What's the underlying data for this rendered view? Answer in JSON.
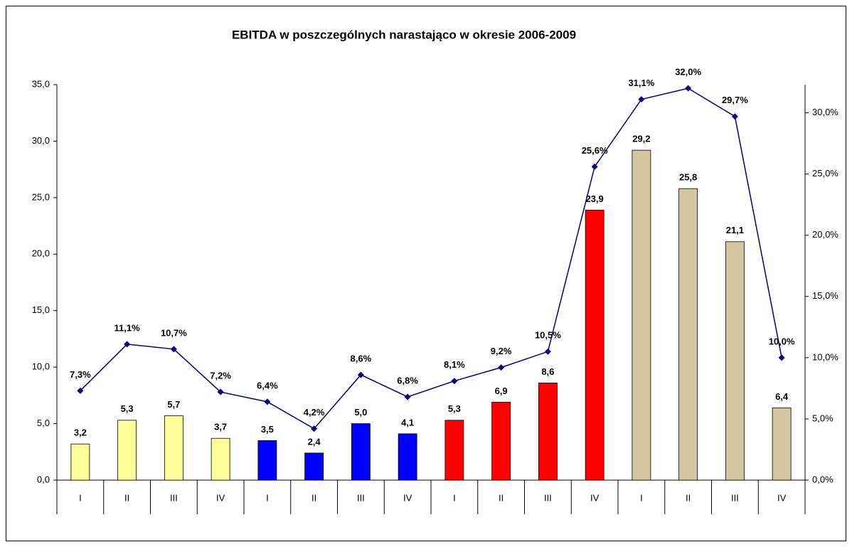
{
  "chart_data": {
    "type": "bar_line",
    "title": "EBITDA w poszczególnych narastająco w okresie 2006-2009",
    "categories": [
      "I",
      "II",
      "III",
      "IV",
      "I",
      "II",
      "III",
      "IV",
      "I",
      "II",
      "III",
      "IV",
      "I",
      "II",
      "III",
      "IV"
    ],
    "series": [
      {
        "type": "bar",
        "colors": [
          "#ffff99",
          "#ffff99",
          "#ffff99",
          "#ffff99",
          "#0000ff",
          "#0000ff",
          "#0000ff",
          "#0000ff",
          "#ff0000",
          "#ff0000",
          "#ff0000",
          "#ff0000",
          "#d3c6a0",
          "#d3c6a0",
          "#d3c6a0",
          "#d3c6a0"
        ],
        "values": [
          3.2,
          5.3,
          5.7,
          3.7,
          3.5,
          2.4,
          5.0,
          4.1,
          5.3,
          6.9,
          8.6,
          23.9,
          29.2,
          25.8,
          21.1,
          6.4
        ],
        "value_labels": [
          "3,2",
          "5,3",
          "5,7",
          "3,7",
          "3,5",
          "2,4",
          "5,0",
          "4,1",
          "5,3",
          "6,9",
          "8,6",
          "23,9",
          "29,2",
          "25,8",
          "21,1",
          "6,4"
        ]
      },
      {
        "type": "line",
        "axis": "y2",
        "color": "#000080",
        "values": [
          7.3,
          11.1,
          10.7,
          7.2,
          6.4,
          4.2,
          8.6,
          6.8,
          8.1,
          9.2,
          10.5,
          25.6,
          31.1,
          32.0,
          29.7,
          10.0
        ],
        "value_labels": [
          "7,3%",
          "11,1%",
          "10,7%",
          "7,2%",
          "6,4%",
          "4,2%",
          "8,6%",
          "6,8%",
          "8,1%",
          "9,2%",
          "10,5%",
          "25,6%",
          "31,1%",
          "32,0%",
          "29,7%",
          "10,0%"
        ]
      }
    ],
    "ylim": [
      0,
      35
    ],
    "yticks": [
      {
        "value": 0,
        "label": "0,0"
      },
      {
        "value": 5,
        "label": "5,0"
      },
      {
        "value": 10,
        "label": "10,0"
      },
      {
        "value": 15,
        "label": "15,0"
      },
      {
        "value": 20,
        "label": "20,0"
      },
      {
        "value": 25,
        "label": "25,0"
      },
      {
        "value": 30,
        "label": "30,0"
      },
      {
        "value": 35,
        "label": "35,0"
      }
    ],
    "y2lim": [
      0,
      32.3
    ],
    "y2ticks": [
      {
        "value": 0,
        "label": "0,0%"
      },
      {
        "value": 5,
        "label": "5,0%"
      },
      {
        "value": 10,
        "label": "10,0%"
      },
      {
        "value": 15,
        "label": "15,0%"
      },
      {
        "value": 20,
        "label": "20,0%"
      },
      {
        "value": 25,
        "label": "25,0%"
      },
      {
        "value": 30,
        "label": "30,0%"
      }
    ]
  }
}
